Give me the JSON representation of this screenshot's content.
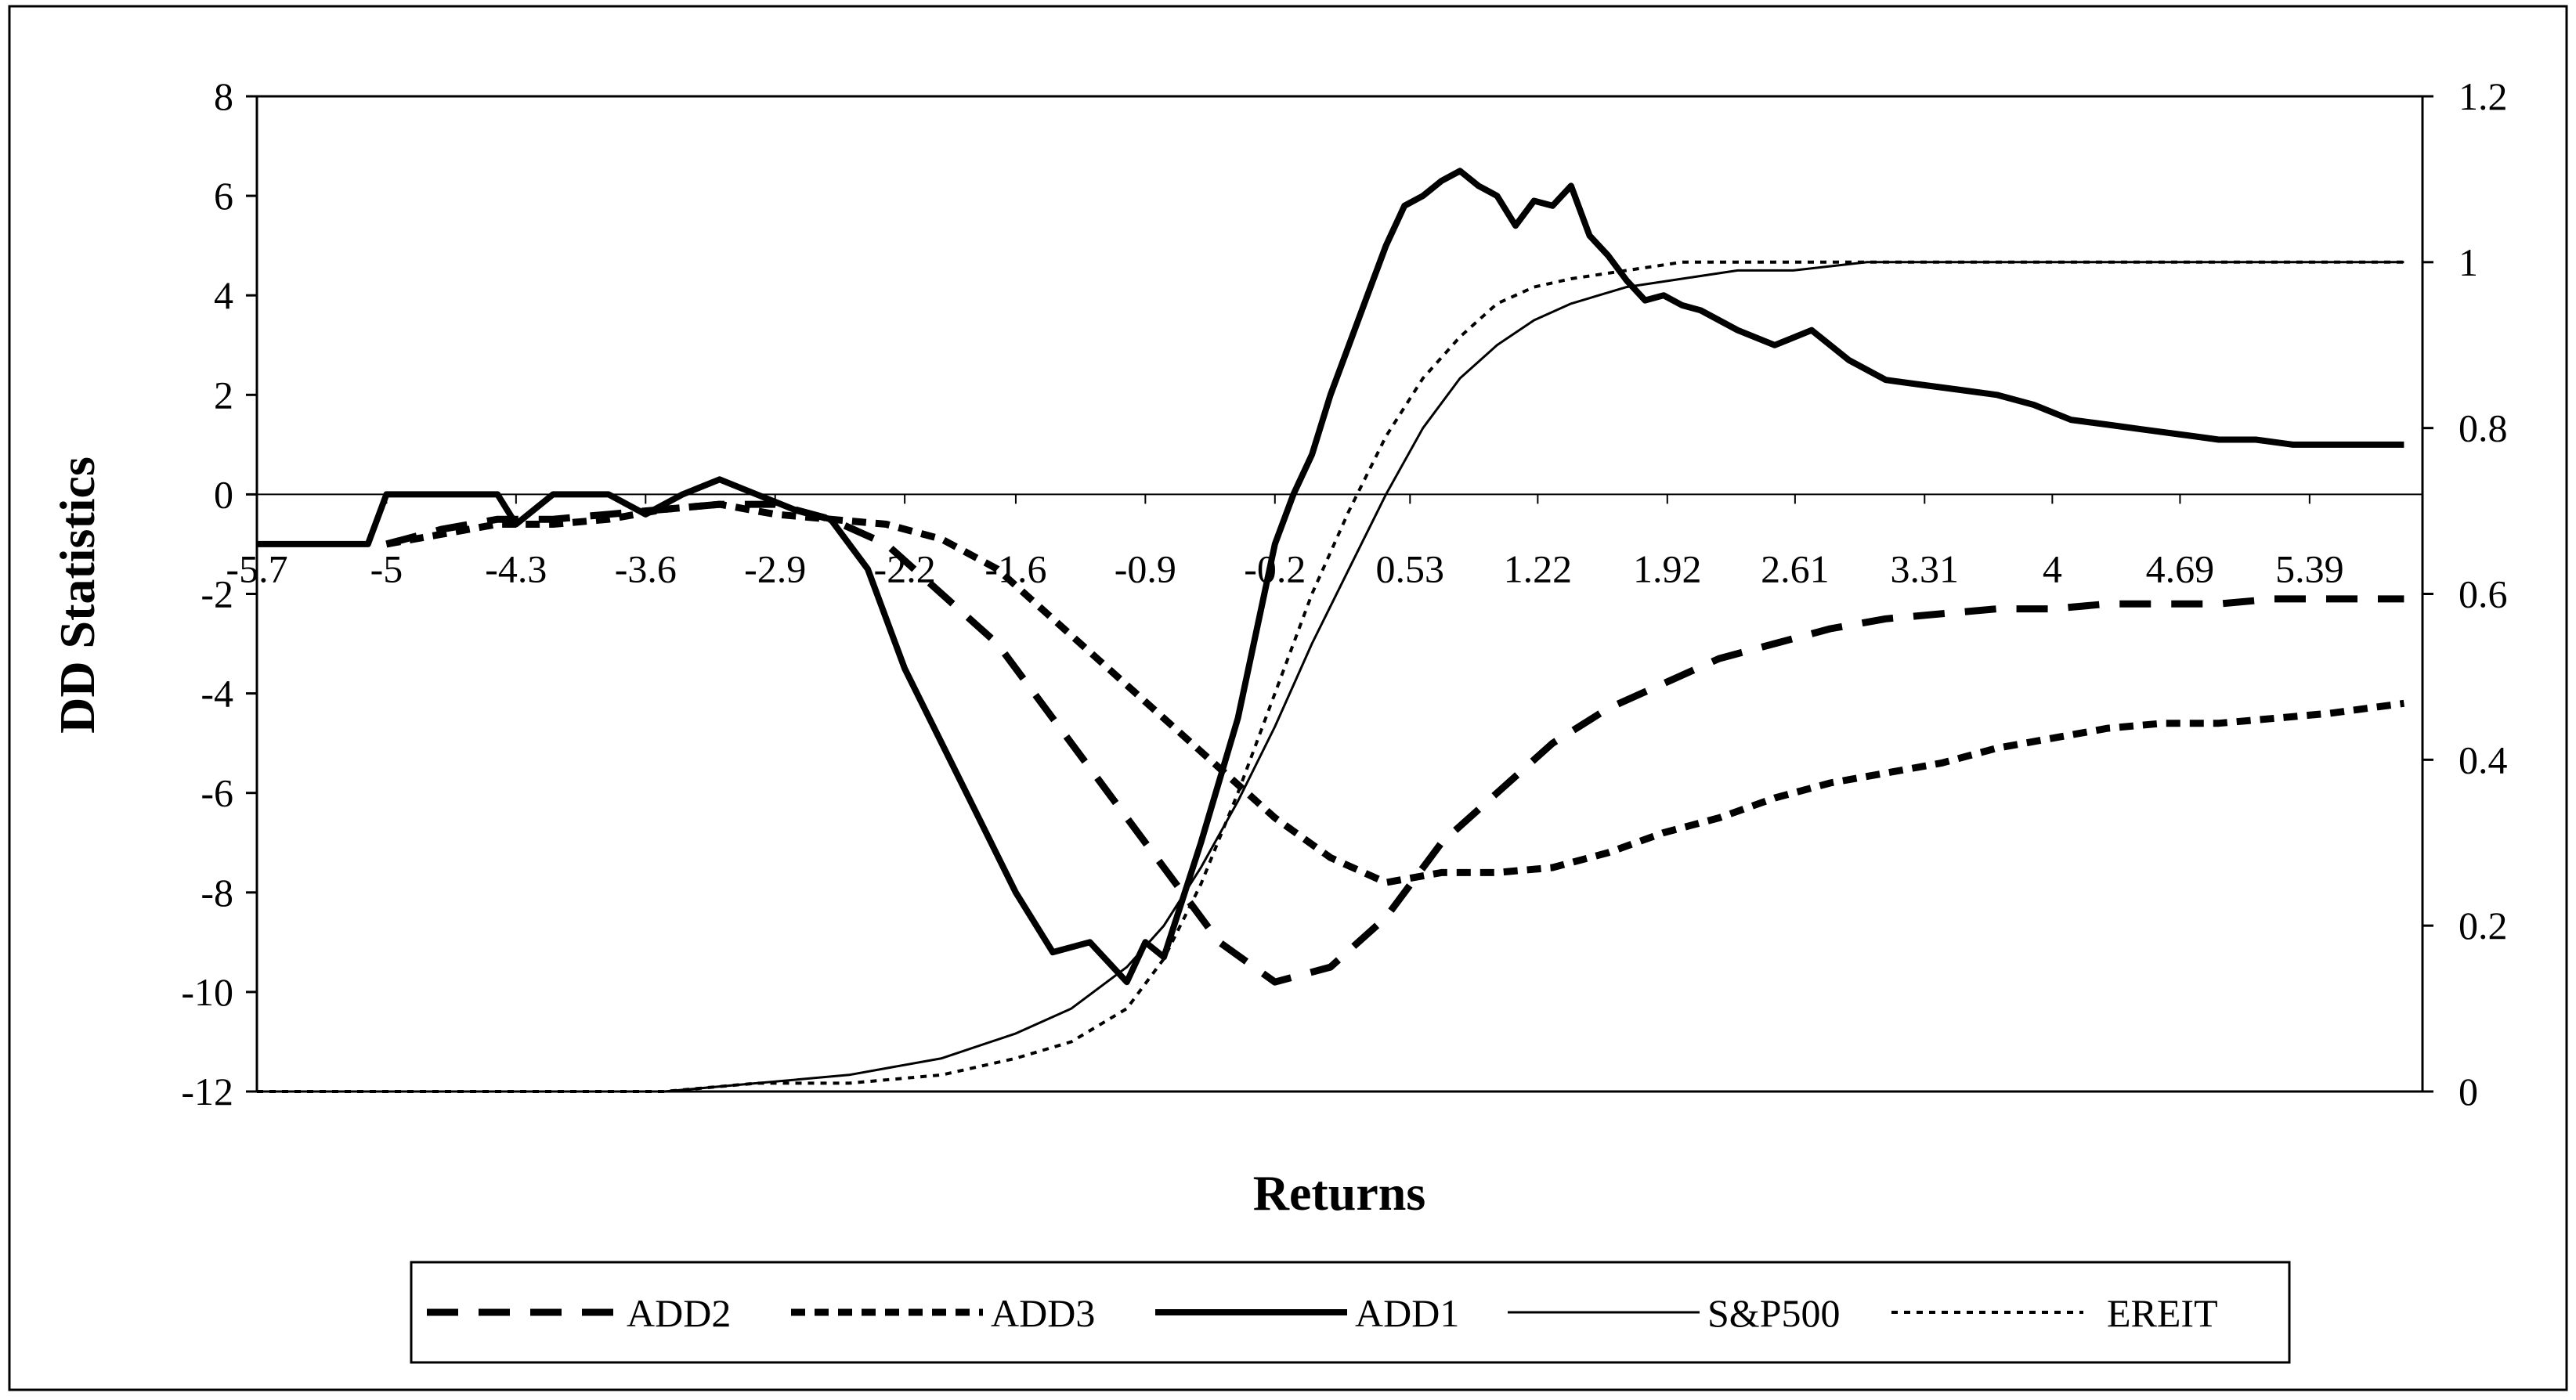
{
  "chart_data": {
    "type": "line",
    "title": "",
    "xlabel": "Returns",
    "ylabel": "DD Statistics",
    "y_left_ticks": [
      "8",
      "6",
      "4",
      "2",
      "0",
      "-2",
      "-4",
      "-6",
      "-8",
      "-10",
      "-12"
    ],
    "y_right_ticks": [
      "1.2",
      "1",
      "0.8",
      "0.6",
      "0.4",
      "0.2",
      "0"
    ],
    "x_tick_labels": [
      "-5.7",
      "-5",
      "-4.3",
      "-3.6",
      "-2.9",
      "-2.2",
      "-1.6",
      "-0.9",
      "-0.2",
      "0.53",
      "1.22",
      "1.92",
      "2.61",
      "3.31",
      "4",
      "4.69",
      "5.39"
    ],
    "ylim_left": [
      -12,
      8
    ],
    "ylim_right": [
      0,
      1.2
    ],
    "xlim": [
      -5.7,
      6.0
    ],
    "grid": false,
    "legend_position": "bottom",
    "legend": [
      "ADD2",
      "ADD3",
      "ADD1",
      "S&P500",
      "EREIT"
    ],
    "series": [
      {
        "name": "ADD2",
        "axis": "left",
        "style": "long-dash-heavy",
        "x": [
          -5.0,
          -4.7,
          -4.4,
          -4.1,
          -3.8,
          -3.5,
          -3.2,
          -2.9,
          -2.6,
          -2.3,
          -2.0,
          -1.7,
          -1.4,
          -1.1,
          -0.8,
          -0.5,
          -0.2,
          0.1,
          0.4,
          0.7,
          1.0,
          1.3,
          1.6,
          1.9,
          2.2,
          2.5,
          2.8,
          3.1,
          3.4,
          3.7,
          4.0,
          4.3,
          4.6,
          4.9,
          5.2,
          5.5,
          5.9
        ],
        "y": [
          -1.0,
          -0.7,
          -0.5,
          -0.5,
          -0.4,
          -0.3,
          -0.2,
          -0.2,
          -0.5,
          -1.0,
          -2.0,
          -3.0,
          -4.5,
          -6.0,
          -7.5,
          -9.0,
          -9.8,
          -9.5,
          -8.5,
          -7.0,
          -6.0,
          -5.0,
          -4.3,
          -3.8,
          -3.3,
          -3.0,
          -2.7,
          -2.5,
          -2.4,
          -2.3,
          -2.3,
          -2.2,
          -2.2,
          -2.2,
          -2.1,
          -2.1,
          -2.1
        ]
      },
      {
        "name": "ADD3",
        "axis": "left",
        "style": "short-dash-heavy",
        "x": [
          -5.0,
          -4.7,
          -4.4,
          -4.1,
          -3.8,
          -3.5,
          -3.2,
          -2.9,
          -2.6,
          -2.3,
          -2.0,
          -1.7,
          -1.4,
          -1.1,
          -0.8,
          -0.5,
          -0.2,
          0.1,
          0.4,
          0.7,
          1.0,
          1.3,
          1.6,
          1.9,
          2.2,
          2.5,
          2.8,
          3.1,
          3.4,
          3.7,
          4.0,
          4.3,
          4.6,
          4.9,
          5.2,
          5.5,
          5.9
        ],
        "y": [
          -1.0,
          -0.8,
          -0.6,
          -0.6,
          -0.5,
          -0.3,
          -0.2,
          -0.4,
          -0.5,
          -0.6,
          -0.9,
          -1.5,
          -2.5,
          -3.5,
          -4.5,
          -5.5,
          -6.5,
          -7.3,
          -7.8,
          -7.6,
          -7.6,
          -7.5,
          -7.2,
          -6.8,
          -6.5,
          -6.1,
          -5.8,
          -5.6,
          -5.4,
          -5.1,
          -4.9,
          -4.7,
          -4.6,
          -4.6,
          -4.5,
          -4.4,
          -4.2
        ]
      },
      {
        "name": "ADD1",
        "axis": "left",
        "style": "solid-heavy",
        "x": [
          -5.7,
          -5.4,
          -5.1,
          -5.0,
          -4.7,
          -4.4,
          -4.3,
          -4.1,
          -3.8,
          -3.6,
          -3.4,
          -3.2,
          -3.0,
          -2.8,
          -2.6,
          -2.4,
          -2.2,
          -2.0,
          -1.8,
          -1.6,
          -1.4,
          -1.2,
          -1.0,
          -0.9,
          -0.8,
          -0.6,
          -0.4,
          -0.2,
          -0.1,
          0.0,
          0.1,
          0.2,
          0.3,
          0.4,
          0.5,
          0.6,
          0.7,
          0.8,
          0.9,
          1.0,
          1.1,
          1.2,
          1.3,
          1.4,
          1.5,
          1.6,
          1.7,
          1.8,
          1.9,
          2.0,
          2.1,
          2.3,
          2.5,
          2.7,
          2.9,
          3.1,
          3.3,
          3.5,
          3.7,
          3.9,
          4.1,
          4.3,
          4.5,
          4.7,
          4.9,
          5.1,
          5.3,
          5.5,
          5.7,
          5.9
        ],
        "y": [
          -1.0,
          -1.0,
          -1.0,
          0.0,
          0.0,
          0.0,
          -0.6,
          0.0,
          0.0,
          -0.4,
          0.0,
          0.3,
          0.0,
          -0.3,
          -0.5,
          -1.5,
          -3.5,
          -5.0,
          -6.5,
          -8.0,
          -9.2,
          -9.0,
          -9.8,
          -9.0,
          -9.3,
          -7.0,
          -4.5,
          -1.0,
          0.0,
          0.8,
          2.0,
          3.0,
          4.0,
          5.0,
          5.8,
          6.0,
          6.3,
          6.5,
          6.2,
          6.0,
          5.4,
          5.9,
          5.8,
          6.2,
          5.2,
          4.8,
          4.3,
          3.9,
          4.0,
          3.8,
          3.7,
          3.3,
          3.0,
          3.3,
          2.7,
          2.3,
          2.2,
          2.1,
          2.0,
          1.8,
          1.5,
          1.4,
          1.3,
          1.2,
          1.1,
          1.1,
          1.0,
          1.0,
          1.0,
          1.0
        ]
      },
      {
        "name": "S&P500",
        "axis": "right",
        "style": "solid-thin",
        "x": [
          -5.7,
          -4.5,
          -3.5,
          -3.0,
          -2.5,
          -2.0,
          -1.6,
          -1.3,
          -1.0,
          -0.8,
          -0.6,
          -0.4,
          -0.2,
          0.0,
          0.2,
          0.4,
          0.6,
          0.8,
          1.0,
          1.2,
          1.4,
          1.7,
          2.0,
          2.3,
          2.6,
          3.0,
          3.5,
          4.0,
          4.5,
          5.0,
          5.5,
          5.9
        ],
        "y": [
          0.0,
          0.0,
          0.0,
          0.01,
          0.02,
          0.04,
          0.07,
          0.1,
          0.15,
          0.2,
          0.27,
          0.35,
          0.44,
          0.54,
          0.63,
          0.72,
          0.8,
          0.86,
          0.9,
          0.93,
          0.95,
          0.97,
          0.98,
          0.99,
          0.99,
          1.0,
          1.0,
          1.0,
          1.0,
          1.0,
          1.0,
          1.0
        ]
      },
      {
        "name": "EREIT",
        "axis": "right",
        "style": "dotted-thin",
        "x": [
          -5.7,
          -4.5,
          -3.5,
          -3.0,
          -2.5,
          -2.0,
          -1.6,
          -1.3,
          -1.0,
          -0.8,
          -0.6,
          -0.4,
          -0.2,
          0.0,
          0.2,
          0.4,
          0.6,
          0.8,
          1.0,
          1.2,
          1.4,
          1.7,
          2.0,
          2.3,
          2.6,
          3.0,
          3.5,
          4.0,
          4.5,
          5.0,
          5.5,
          5.9
        ],
        "y": [
          0.0,
          0.0,
          0.0,
          0.01,
          0.01,
          0.02,
          0.04,
          0.06,
          0.1,
          0.16,
          0.25,
          0.36,
          0.48,
          0.6,
          0.7,
          0.79,
          0.86,
          0.91,
          0.95,
          0.97,
          0.98,
          0.99,
          1.0,
          1.0,
          1.0,
          1.0,
          1.0,
          1.0,
          1.0,
          1.0,
          1.0,
          1.0
        ]
      }
    ]
  }
}
